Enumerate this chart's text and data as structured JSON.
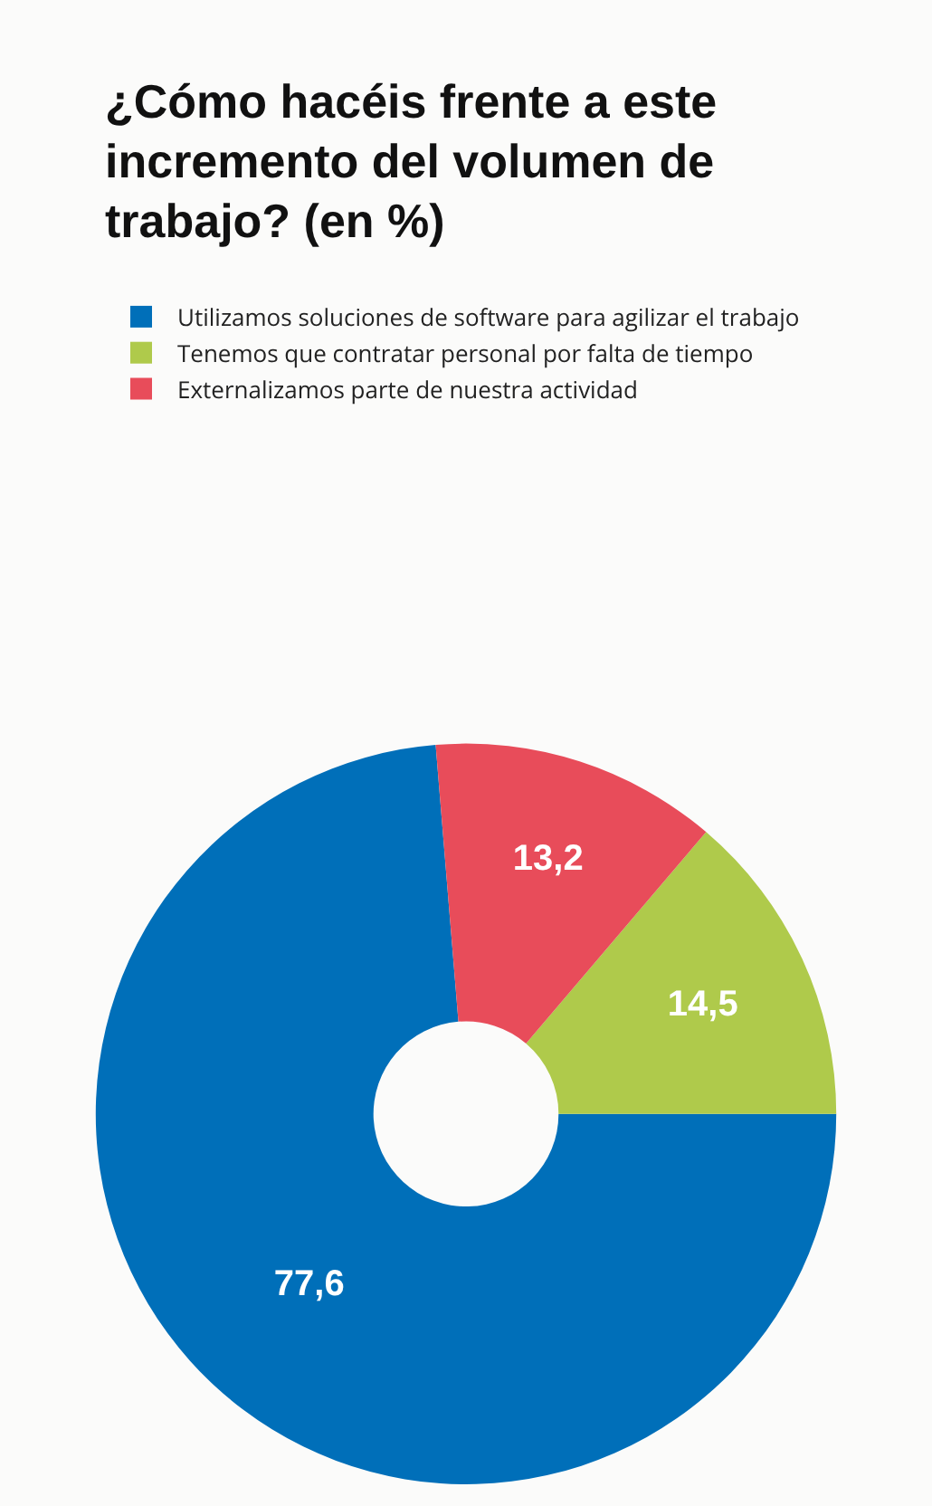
{
  "chart_data": {
    "type": "donut",
    "title": "¿Cómo hacéis frente a este incremento del volumen de trabajo? (en %)",
    "categories": [
      "Utilizamos soluciones de software para agilizar el trabajo",
      "Tenemos que contratar personal por falta de tiempo",
      "Externalizamos parte de nuestra actividad"
    ],
    "values": [
      77.6,
      14.5,
      13.2
    ],
    "colors": [
      "#006fb9",
      "#afca4b",
      "#e84c5a"
    ],
    "value_labels": [
      "77,6",
      "14,5",
      "13,2"
    ],
    "legend": "top"
  }
}
